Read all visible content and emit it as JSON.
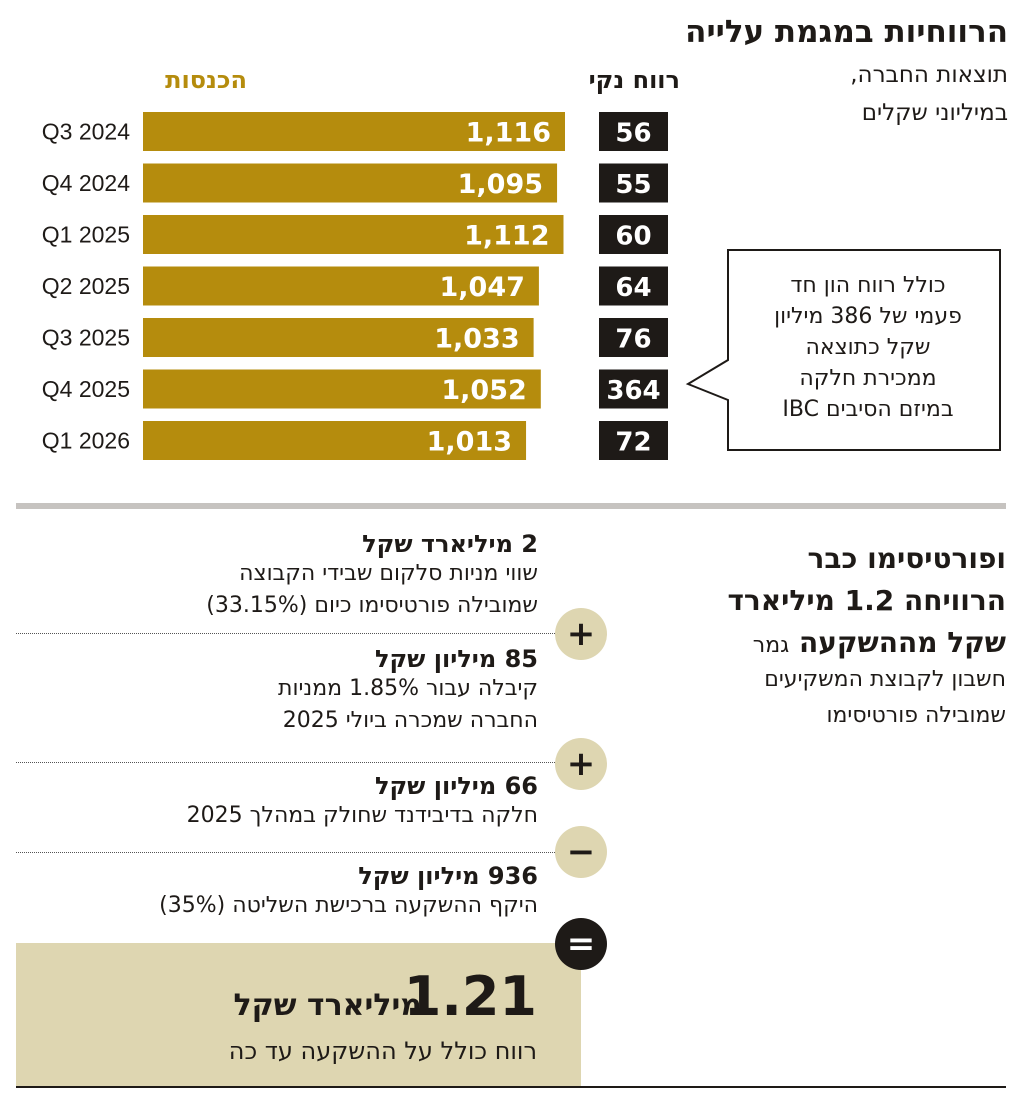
{
  "header": {
    "title": "הרווחיות במגמת עלייה",
    "subtitle_line1": "תוצאות החברה,",
    "subtitle_line2": "במיליוני שקלים"
  },
  "colors": {
    "revenue_bar": "#b58c0d",
    "net_box": "#1e1a17",
    "accent_light": "#ded6b1"
  },
  "chart_data": {
    "type": "bar",
    "orientation": "horizontal",
    "categories": [
      "Q3 2024",
      "Q4 2024",
      "Q1 2025",
      "Q2 2025",
      "Q3 2025",
      "Q4 2025",
      "Q1 2026"
    ],
    "series": [
      {
        "name": "הכנסות",
        "values": [
          1116,
          1095,
          1112,
          1047,
          1033,
          1052,
          1013
        ]
      },
      {
        "name": "רווח נקי",
        "values": [
          56,
          55,
          60,
          64,
          76,
          364,
          72
        ]
      }
    ],
    "value_labels": {
      "revenue": [
        "1,116",
        "1,095",
        "1,112",
        "1,047",
        "1,033",
        "1,052",
        "1,013"
      ],
      "net": [
        "56",
        "55",
        "60",
        "64",
        "76",
        "364",
        "72"
      ]
    }
  },
  "callout": {
    "lines": [
      "כולל רווח הון חד",
      "פעמי של 386 מיליון",
      "שקל כתוצאה",
      "ממכירת חלקה",
      "במיזם הסיבים IBC"
    ]
  },
  "right_panel": {
    "headline_lines": [
      "ופורטיסימו כבר",
      "הרוויחה 1.2 מיליארד",
      "שקל מההשקעה"
    ],
    "headline_tail": "גמר",
    "sub_lines": [
      "חשבון לקבוצת המשקיעים",
      "שמובילה פורטיסימו"
    ]
  },
  "items": [
    {
      "title": "2 מיליארד שקל",
      "lines": [
        "שווי מניות סלקום שבידי הקבוצה",
        "שמובילה פורטיסימו כיום (33.15%)"
      ],
      "operator": "+"
    },
    {
      "title": "85 מיליון שקל",
      "lines": [
        "קיבלה עבור 1.85% ממניות",
        "החברה שמכרה ביולי 2025"
      ],
      "operator": "+"
    },
    {
      "title": "66 מיליון שקל",
      "lines": [
        "חלקה בדיבידנד שחולק במהלך 2025"
      ],
      "operator": "−"
    },
    {
      "title": "936 מיליון שקל",
      "lines": [
        "היקף ההשקעה ברכישת השליטה (35%)"
      ],
      "operator": "="
    }
  ],
  "total": {
    "number": "1.21",
    "unit": "מיליארד שקל",
    "description": "רווח כולל על ההשקעה עד כה"
  }
}
